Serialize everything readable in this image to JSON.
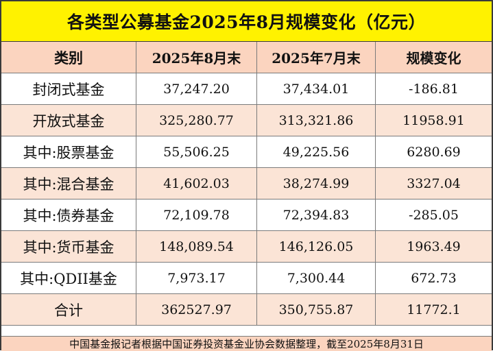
{
  "title": "各类型公募基金2025年8月规模变化（亿元）",
  "headers": [
    "类别",
    "2025年8月末",
    "2025年7月末",
    "规模变化"
  ],
  "rows": [
    {
      "category": "封闭式基金",
      "aug": "37,247.20",
      "jul": "37,434.01",
      "change": "-186.81"
    },
    {
      "category": "开放式基金",
      "aug": "325,280.77",
      "jul": "313,321.86",
      "change": "11958.91"
    },
    {
      "category": "其中:股票基金",
      "aug": "55,506.25",
      "jul": "49,225.56",
      "change": "6280.69"
    },
    {
      "category": "其中:混合基金",
      "aug": "41,602.03",
      "jul": "38,274.99",
      "change": "3327.04"
    },
    {
      "category": "其中:债券基金",
      "aug": "72,109.78",
      "jul": "72,394.83",
      "change": "-285.05"
    },
    {
      "category": "其中:货币基金",
      "aug": "148,089.54",
      "jul": "146,126.05",
      "change": "1963.49"
    },
    {
      "category": "其中:QDII基金",
      "aug": "7,973.17",
      "jul": "7,300.44",
      "change": "672.73"
    },
    {
      "category": "合计",
      "aug": "362527.97",
      "jul": "350,755.87",
      "change": "11772.1"
    }
  ],
  "footer": "中国基金报记者根据中国证券投资基金业协会数据整理，截至2025年8月31日",
  "colors": {
    "title_bg": "#fff200",
    "header_bg": "#fbd4bf",
    "stripe_bg": "#fbe4d6",
    "border": "#3a3a3a"
  }
}
